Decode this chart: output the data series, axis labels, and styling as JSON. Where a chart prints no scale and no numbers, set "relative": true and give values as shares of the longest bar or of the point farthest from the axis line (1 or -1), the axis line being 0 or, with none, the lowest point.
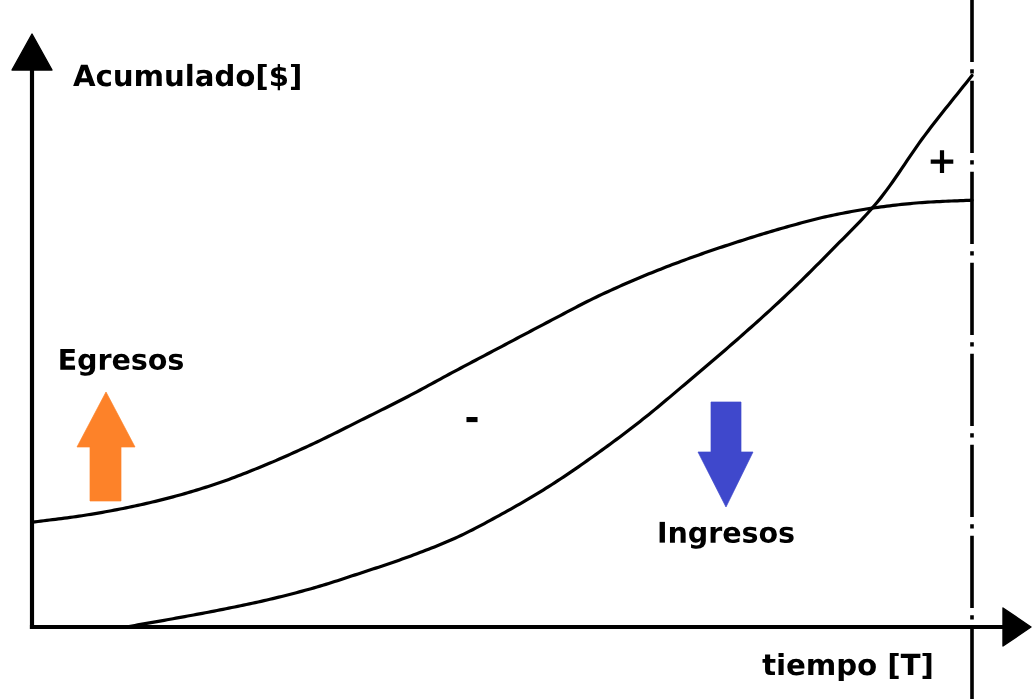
{
  "chart_data": {
    "type": "line",
    "relative": true,
    "xlabel": "tiempo [T]",
    "ylabel": "Acumulado[$]",
    "categories": [
      null,
      null,
      null,
      null,
      null,
      null,
      null,
      null,
      null,
      null,
      null,
      null,
      null,
      null,
      null,
      null,
      null,
      null,
      null,
      null,
      null
    ],
    "series": [
      {
        "color": "#000000",
        "values": [
          0.19,
          0.201,
          0.216,
          0.236,
          0.262,
          0.295,
          0.333,
          0.375,
          0.418,
          0.464,
          0.509,
          0.554,
          0.598,
          0.636,
          0.669,
          0.698,
          0.724,
          0.746,
          0.761,
          0.77,
          0.774
        ]
      },
      {
        "color": "#000000",
        "values": [
          null,
          null,
          0,
          0.015,
          0.031,
          0.049,
          0.071,
          0.098,
          0.127,
          0.161,
          0.205,
          0.255,
          0.313,
          0.377,
          0.448,
          0.521,
          0.598,
          0.682,
          0.772,
          0.892,
          1
        ]
      }
    ],
    "annotations": [
      "+",
      "Egresos",
      "-",
      "Ingresos"
    ]
  }
}
